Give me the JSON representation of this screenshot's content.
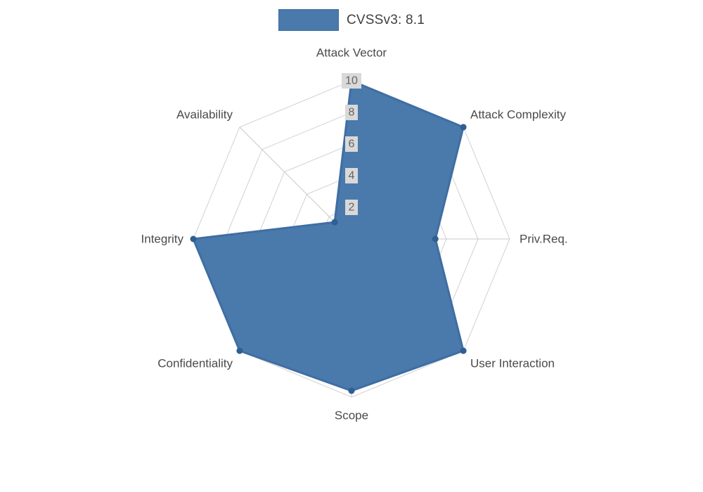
{
  "legend": {
    "label": "CVSSv3: 8.1"
  },
  "chart_data": {
    "type": "radar",
    "title": "CVSSv3: 8.1",
    "categories": [
      "Attack Vector",
      "Attack Complexity",
      "Priv.Req.",
      "User Interaction",
      "Scope",
      "Confidentiality",
      "Integrity",
      "Availability"
    ],
    "values": [
      10,
      10,
      5.3,
      10,
      9.6,
      10,
      10,
      1.5
    ],
    "ticks": [
      2,
      4,
      6,
      8,
      10
    ],
    "rmax": 10,
    "grid": true,
    "legend_position": "top",
    "colors": {
      "fill": "#4a79ab",
      "border": "#3e6ea3",
      "point": "#2f5e91",
      "grid": "#d2d2d2",
      "axis_line": "#c9c9c9",
      "tick_text": "#646464",
      "tick_backdrop": "#d9d9d9",
      "label_text": "#4a4a4a",
      "background": "#ffffff"
    }
  }
}
